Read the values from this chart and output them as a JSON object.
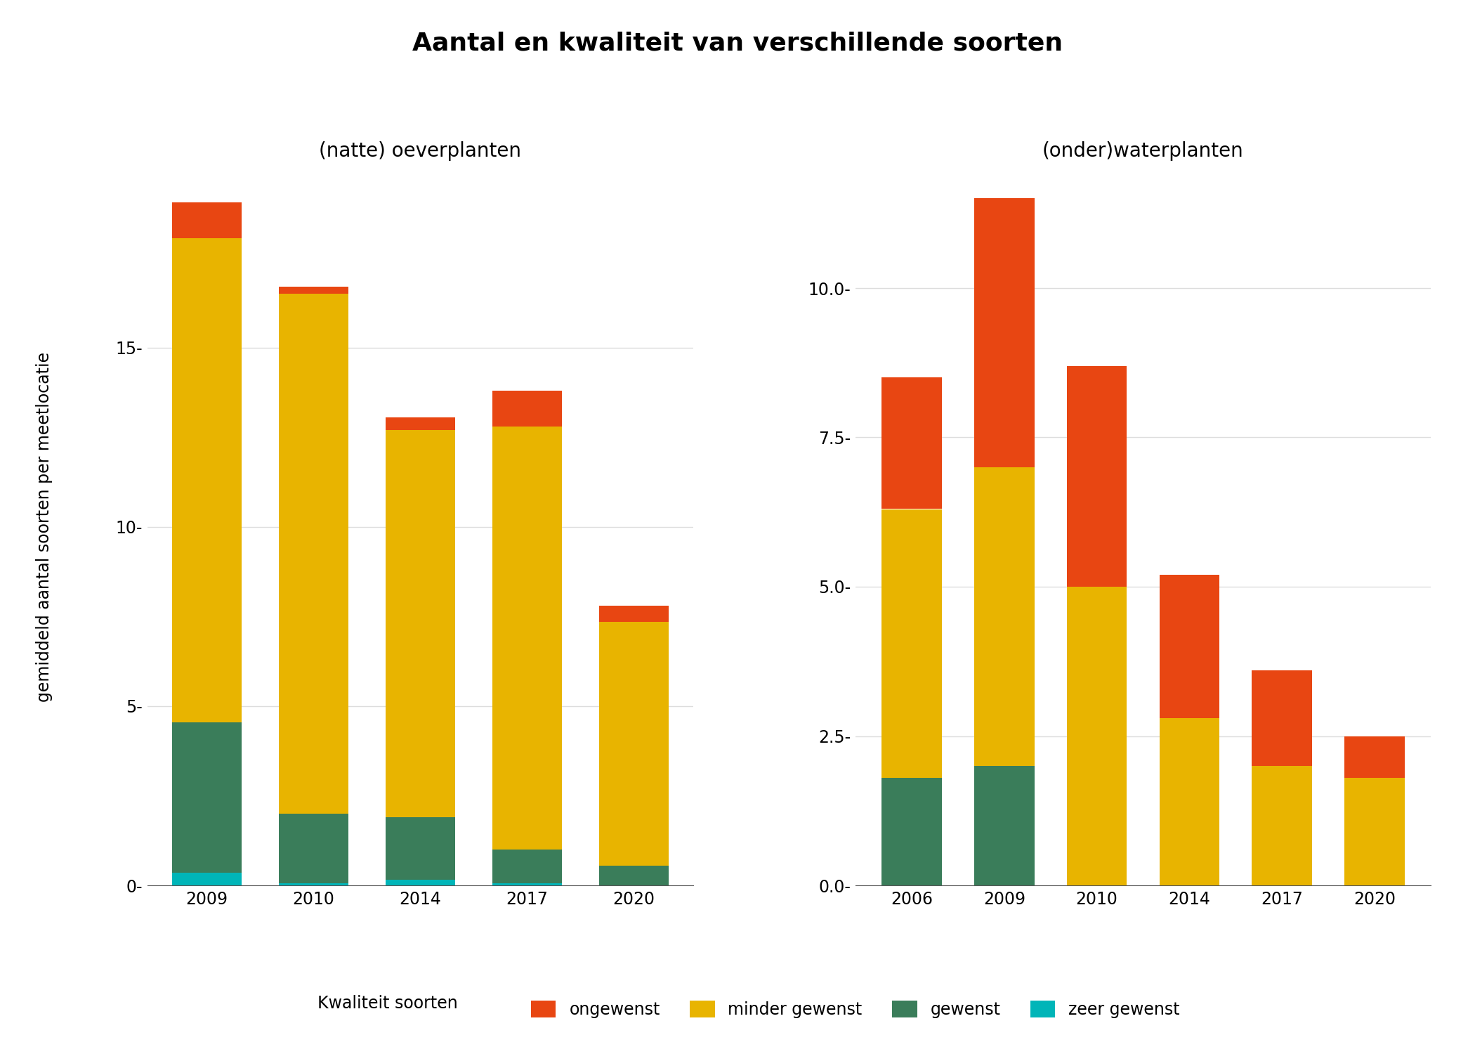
{
  "title": "Aantal en kwaliteit van verschillende soorten",
  "subtitle_left": "(natte) oeverplanten",
  "subtitle_right": "(onder)waterplanten",
  "ylabel": "gemiddeld aantal soorten per meetlocatie",
  "legend_title": "Kwaliteit soorten",
  "legend_labels": [
    "ongewenst",
    "minder gewenst",
    "gewenst",
    "zeer gewenst"
  ],
  "colors": {
    "ongewenst": "#E84612",
    "minder_gewenst": "#E8B400",
    "gewenst": "#3A7D5A",
    "zeer_gewenst": "#00B5B8"
  },
  "left_chart": {
    "years": [
      "2009",
      "2010",
      "2014",
      "2017",
      "2020"
    ],
    "zeer_gewenst": [
      0.35,
      0.05,
      0.15,
      0.05,
      0.0
    ],
    "gewenst": [
      4.2,
      1.95,
      1.75,
      0.95,
      0.55
    ],
    "minder_gewenst": [
      13.5,
      14.5,
      10.8,
      11.8,
      6.8
    ],
    "ongewenst": [
      1.0,
      0.2,
      0.35,
      1.0,
      0.45
    ],
    "ylim": [
      0,
      20
    ],
    "yticks": [
      0,
      5,
      10,
      15
    ],
    "ytick_labels": [
      "0-",
      "5-",
      "10-",
      "15-"
    ]
  },
  "right_chart": {
    "years": [
      "2006",
      "2009",
      "2010",
      "2014",
      "2017",
      "2020"
    ],
    "zeer_gewenst": [
      0.0,
      0.0,
      0.0,
      0.0,
      0.0,
      0.0
    ],
    "gewenst": [
      1.8,
      2.0,
      0.0,
      0.0,
      0.0,
      0.0
    ],
    "minder_gewenst": [
      4.5,
      5.0,
      5.0,
      2.8,
      2.0,
      1.8
    ],
    "ongewenst": [
      2.2,
      4.5,
      3.7,
      2.4,
      1.6,
      0.7
    ],
    "ylim": [
      0,
      12
    ],
    "yticks": [
      0.0,
      2.5,
      5.0,
      7.5,
      10.0
    ],
    "ytick_labels": [
      "0.0-",
      "2.5-",
      "5.0-",
      "7.5-",
      "10.0-"
    ]
  },
  "background_color": "#FFFFFF",
  "grid_color": "#DDDDDD"
}
